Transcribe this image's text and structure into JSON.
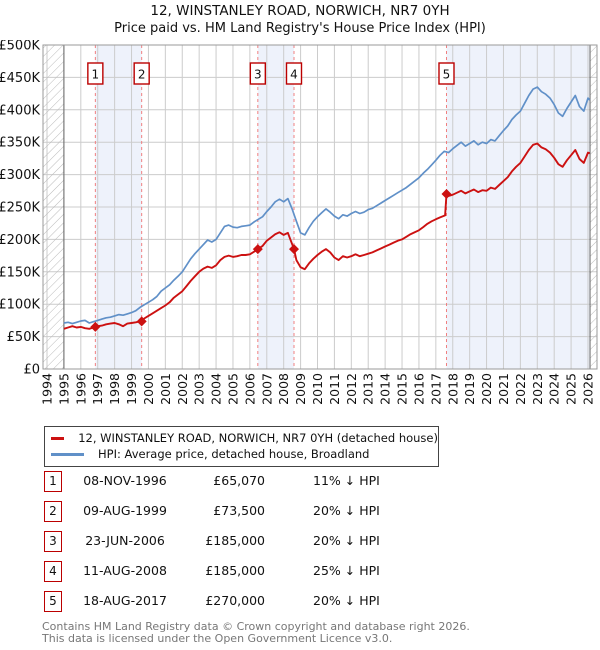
{
  "title": "12, WINSTANLEY ROAD, NORWICH, NR7 0YH",
  "subtitle": "Price paid vs. HM Land Registry's House Price Index (HPI)",
  "colors": {
    "price_line": "#cc1111",
    "hpi_line": "#6090c8",
    "band_fill": "#eef2fb",
    "grid": "#cccccc",
    "plot_border": "#999999",
    "hatch_line": "#bbbbbb",
    "hatch_edge": "#666666",
    "sale_dashed_line": "#f08080",
    "marker_box_border": "#bb0000",
    "axis_text": "#111111",
    "footer_text": "#777777"
  },
  "legend": {
    "entries": [
      {
        "label": "12, WINSTANLEY ROAD, NORWICH, NR7 0YH (detached house)",
        "color": "#cc1111"
      },
      {
        "label": "HPI: Average price, detached house, Broadland",
        "color": "#6090c8"
      }
    ]
  },
  "table": {
    "rows": [
      {
        "num": "1",
        "date": "08-NOV-1996",
        "price": "£65,070",
        "pct": "11% ↓ HPI"
      },
      {
        "num": "2",
        "date": "09-AUG-1999",
        "price": "£73,500",
        "pct": "20% ↓ HPI"
      },
      {
        "num": "3",
        "date": "23-JUN-2006",
        "price": "£185,000",
        "pct": "20% ↓ HPI"
      },
      {
        "num": "4",
        "date": "11-AUG-2008",
        "price": "£185,000",
        "pct": "25% ↓ HPI"
      },
      {
        "num": "5",
        "date": "18-AUG-2017",
        "price": "£270,000",
        "pct": "20% ↓ HPI"
      }
    ]
  },
  "footer": {
    "line1": "Contains HM Land Registry data © Crown copyright and database right 2026.",
    "line2": "This data is licensed under the Open Government Licence v3.0."
  },
  "chart_data": {
    "type": "line",
    "title": "12, WINSTANLEY ROAD, NORWICH, NR7 0YH",
    "subtitle": "Price paid vs. HM Land Registry's House Price Index (HPI)",
    "xlabel": "",
    "ylabel": "",
    "x_axis": {
      "min": 1993.76,
      "max": 2026.53,
      "ticks": [
        1994,
        1995,
        1996,
        1997,
        1998,
        1999,
        2000,
        2001,
        2002,
        2003,
        2004,
        2005,
        2006,
        2007,
        2008,
        2009,
        2010,
        2011,
        2012,
        2013,
        2014,
        2015,
        2016,
        2017,
        2018,
        2019,
        2020,
        2021,
        2022,
        2023,
        2024,
        2025,
        2026
      ]
    },
    "y_axis": {
      "min": 0,
      "max": 500,
      "unit": "GBP thousands",
      "tick_values": [
        0,
        50,
        100,
        150,
        200,
        250,
        300,
        350,
        400,
        450,
        500
      ],
      "tick_labels": [
        "£0",
        "£50K",
        "£100K",
        "£150K",
        "£200K",
        "£250K",
        "£300K",
        "£350K",
        "£400K",
        "£450K",
        "£500K"
      ]
    },
    "grid": true,
    "legend_position": "below",
    "no_data_hatch_ranges": [
      [
        1993.76,
        1995.0
      ],
      [
        2026.12,
        2026.53
      ]
    ],
    "ownership_bands": [
      [
        1996.86,
        1999.6
      ],
      [
        2006.47,
        2008.61
      ],
      [
        2017.63,
        2026.12
      ]
    ],
    "sales": [
      {
        "num": "1",
        "date": "08-NOV-1996",
        "year": 1996.86,
        "price_k": 65.07,
        "price_label": "£65,070",
        "vs_hpi": "11% ↓ HPI"
      },
      {
        "num": "2",
        "date": "09-AUG-1999",
        "year": 1999.6,
        "price_k": 73.5,
        "price_label": "£73,500",
        "vs_hpi": "20% ↓ HPI"
      },
      {
        "num": "3",
        "date": "23-JUN-2006",
        "year": 2006.47,
        "price_k": 185,
        "price_label": "£185,000",
        "vs_hpi": "20% ↓ HPI"
      },
      {
        "num": "4",
        "date": "11-AUG-2008",
        "year": 2008.61,
        "price_k": 185,
        "price_label": "£185,000",
        "vs_hpi": "25% ↓ HPI"
      },
      {
        "num": "5",
        "date": "18-AUG-2017",
        "year": 2017.63,
        "price_k": 270,
        "price_label": "£270,000",
        "vs_hpi": "20% ↓ HPI"
      }
    ],
    "series": [
      {
        "name": "12, WINSTANLEY ROAD, NORWICH, NR7 0YH (detached house)",
        "color": "#cc1111",
        "points": [
          [
            1995.0,
            62
          ],
          [
            1995.25,
            64
          ],
          [
            1995.5,
            66
          ],
          [
            1995.75,
            64
          ],
          [
            1996.0,
            65
          ],
          [
            1996.25,
            63
          ],
          [
            1996.5,
            62
          ],
          [
            1996.85,
            65
          ],
          [
            1997.0,
            66
          ],
          [
            1997.25,
            67
          ],
          [
            1997.5,
            69
          ],
          [
            1997.75,
            70
          ],
          [
            1998.0,
            71
          ],
          [
            1998.25,
            69
          ],
          [
            1998.5,
            66
          ],
          [
            1998.75,
            70
          ],
          [
            1999.0,
            71
          ],
          [
            1999.25,
            72
          ],
          [
            1999.6,
            74
          ],
          [
            1999.75,
            78
          ],
          [
            2000.0,
            82
          ],
          [
            2000.25,
            86
          ],
          [
            2000.5,
            90
          ],
          [
            2000.75,
            94
          ],
          [
            2001.0,
            98
          ],
          [
            2001.25,
            103
          ],
          [
            2001.5,
            110
          ],
          [
            2001.75,
            115
          ],
          [
            2002.0,
            120
          ],
          [
            2002.25,
            128
          ],
          [
            2002.5,
            136
          ],
          [
            2002.75,
            143
          ],
          [
            2003.0,
            150
          ],
          [
            2003.25,
            155
          ],
          [
            2003.5,
            158
          ],
          [
            2003.75,
            156
          ],
          [
            2004.0,
            160
          ],
          [
            2004.25,
            168
          ],
          [
            2004.5,
            173
          ],
          [
            2004.75,
            175
          ],
          [
            2005.0,
            173
          ],
          [
            2005.25,
            174
          ],
          [
            2005.5,
            176
          ],
          [
            2005.75,
            176
          ],
          [
            2006.0,
            177
          ],
          [
            2006.25,
            181
          ],
          [
            2006.47,
            185
          ],
          [
            2006.75,
            190
          ],
          [
            2007.0,
            198
          ],
          [
            2007.25,
            203
          ],
          [
            2007.5,
            208
          ],
          [
            2007.75,
            211
          ],
          [
            2008.0,
            207
          ],
          [
            2008.25,
            210
          ],
          [
            2008.61,
            185
          ],
          [
            2008.75,
            168
          ],
          [
            2009.0,
            157
          ],
          [
            2009.25,
            154
          ],
          [
            2009.5,
            163
          ],
          [
            2009.75,
            170
          ],
          [
            2010.0,
            176
          ],
          [
            2010.25,
            181
          ],
          [
            2010.5,
            185
          ],
          [
            2010.75,
            180
          ],
          [
            2011.0,
            172
          ],
          [
            2011.25,
            168
          ],
          [
            2011.5,
            174
          ],
          [
            2011.75,
            172
          ],
          [
            2012.0,
            174
          ],
          [
            2012.25,
            177
          ],
          [
            2012.5,
            174
          ],
          [
            2012.75,
            176
          ],
          [
            2013.0,
            178
          ],
          [
            2013.25,
            180
          ],
          [
            2013.5,
            183
          ],
          [
            2013.75,
            186
          ],
          [
            2014.0,
            189
          ],
          [
            2014.25,
            192
          ],
          [
            2014.5,
            195
          ],
          [
            2014.75,
            198
          ],
          [
            2015.0,
            200
          ],
          [
            2015.25,
            204
          ],
          [
            2015.5,
            208
          ],
          [
            2015.75,
            211
          ],
          [
            2016.0,
            214
          ],
          [
            2016.25,
            219
          ],
          [
            2016.5,
            224
          ],
          [
            2016.75,
            228
          ],
          [
            2017.0,
            231
          ],
          [
            2017.25,
            234
          ],
          [
            2017.55,
            237
          ],
          [
            2017.63,
            270
          ],
          [
            2017.75,
            267
          ],
          [
            2018.0,
            269
          ],
          [
            2018.25,
            272
          ],
          [
            2018.5,
            275
          ],
          [
            2018.75,
            271
          ],
          [
            2019.0,
            274
          ],
          [
            2019.25,
            277
          ],
          [
            2019.5,
            273
          ],
          [
            2019.75,
            276
          ],
          [
            2020.0,
            275
          ],
          [
            2020.25,
            280
          ],
          [
            2020.5,
            278
          ],
          [
            2020.75,
            284
          ],
          [
            2021.0,
            290
          ],
          [
            2021.25,
            296
          ],
          [
            2021.5,
            305
          ],
          [
            2021.75,
            312
          ],
          [
            2022.0,
            318
          ],
          [
            2022.25,
            328
          ],
          [
            2022.5,
            338
          ],
          [
            2022.75,
            346
          ],
          [
            2023.0,
            348
          ],
          [
            2023.25,
            342
          ],
          [
            2023.5,
            339
          ],
          [
            2023.75,
            334
          ],
          [
            2024.0,
            326
          ],
          [
            2024.25,
            316
          ],
          [
            2024.5,
            312
          ],
          [
            2024.75,
            322
          ],
          [
            2025.0,
            330
          ],
          [
            2025.25,
            338
          ],
          [
            2025.5,
            324
          ],
          [
            2025.75,
            318
          ],
          [
            2026.0,
            334
          ],
          [
            2026.1,
            333
          ]
        ]
      },
      {
        "name": "HPI: Average price, detached house, Broadland",
        "color": "#6090c8",
        "points": [
          [
            1995.0,
            71
          ],
          [
            1995.25,
            72
          ],
          [
            1995.5,
            70
          ],
          [
            1995.75,
            72
          ],
          [
            1996.0,
            74
          ],
          [
            1996.25,
            75
          ],
          [
            1996.5,
            71
          ],
          [
            1996.75,
            73
          ],
          [
            1997.0,
            75
          ],
          [
            1997.25,
            77
          ],
          [
            1997.5,
            79
          ],
          [
            1997.75,
            80
          ],
          [
            1998.0,
            82
          ],
          [
            1998.25,
            84
          ],
          [
            1998.5,
            83
          ],
          [
            1998.75,
            85
          ],
          [
            1999.0,
            87
          ],
          [
            1999.25,
            90
          ],
          [
            1999.5,
            95
          ],
          [
            1999.75,
            99
          ],
          [
            2000.0,
            103
          ],
          [
            2000.25,
            107
          ],
          [
            2000.5,
            112
          ],
          [
            2000.75,
            120
          ],
          [
            2001.0,
            125
          ],
          [
            2001.25,
            130
          ],
          [
            2001.5,
            137
          ],
          [
            2001.75,
            143
          ],
          [
            2002.0,
            150
          ],
          [
            2002.25,
            160
          ],
          [
            2002.5,
            170
          ],
          [
            2002.75,
            178
          ],
          [
            2003.0,
            185
          ],
          [
            2003.25,
            192
          ],
          [
            2003.5,
            199
          ],
          [
            2003.75,
            196
          ],
          [
            2004.0,
            200
          ],
          [
            2004.25,
            210
          ],
          [
            2004.5,
            220
          ],
          [
            2004.75,
            222
          ],
          [
            2005.0,
            219
          ],
          [
            2005.25,
            218
          ],
          [
            2005.5,
            220
          ],
          [
            2005.75,
            221
          ],
          [
            2006.0,
            222
          ],
          [
            2006.25,
            227
          ],
          [
            2006.5,
            231
          ],
          [
            2006.75,
            235
          ],
          [
            2007.0,
            243
          ],
          [
            2007.25,
            250
          ],
          [
            2007.5,
            258
          ],
          [
            2007.75,
            262
          ],
          [
            2008.0,
            258
          ],
          [
            2008.25,
            263
          ],
          [
            2008.5,
            247
          ],
          [
            2008.75,
            228
          ],
          [
            2009.0,
            210
          ],
          [
            2009.25,
            207
          ],
          [
            2009.5,
            218
          ],
          [
            2009.75,
            228
          ],
          [
            2010.0,
            235
          ],
          [
            2010.25,
            241
          ],
          [
            2010.5,
            247
          ],
          [
            2010.75,
            242
          ],
          [
            2011.0,
            236
          ],
          [
            2011.25,
            232
          ],
          [
            2011.5,
            238
          ],
          [
            2011.75,
            236
          ],
          [
            2012.0,
            240
          ],
          [
            2012.25,
            243
          ],
          [
            2012.5,
            240
          ],
          [
            2012.75,
            242
          ],
          [
            2013.0,
            246
          ],
          [
            2013.25,
            248
          ],
          [
            2013.5,
            252
          ],
          [
            2013.75,
            256
          ],
          [
            2014.0,
            260
          ],
          [
            2014.25,
            264
          ],
          [
            2014.5,
            268
          ],
          [
            2014.75,
            272
          ],
          [
            2015.0,
            276
          ],
          [
            2015.25,
            280
          ],
          [
            2015.5,
            285
          ],
          [
            2015.75,
            290
          ],
          [
            2016.0,
            295
          ],
          [
            2016.25,
            302
          ],
          [
            2016.5,
            308
          ],
          [
            2016.75,
            315
          ],
          [
            2017.0,
            322
          ],
          [
            2017.25,
            330
          ],
          [
            2017.5,
            336
          ],
          [
            2017.75,
            334
          ],
          [
            2018.0,
            340
          ],
          [
            2018.25,
            345
          ],
          [
            2018.5,
            350
          ],
          [
            2018.75,
            344
          ],
          [
            2019.0,
            348
          ],
          [
            2019.25,
            352
          ],
          [
            2019.5,
            346
          ],
          [
            2019.75,
            350
          ],
          [
            2020.0,
            348
          ],
          [
            2020.25,
            354
          ],
          [
            2020.5,
            352
          ],
          [
            2020.75,
            360
          ],
          [
            2021.0,
            368
          ],
          [
            2021.25,
            375
          ],
          [
            2021.5,
            385
          ],
          [
            2021.75,
            392
          ],
          [
            2022.0,
            398
          ],
          [
            2022.25,
            410
          ],
          [
            2022.5,
            422
          ],
          [
            2022.75,
            432
          ],
          [
            2023.0,
            435
          ],
          [
            2023.25,
            428
          ],
          [
            2023.5,
            424
          ],
          [
            2023.75,
            418
          ],
          [
            2024.0,
            408
          ],
          [
            2024.25,
            395
          ],
          [
            2024.5,
            390
          ],
          [
            2024.75,
            402
          ],
          [
            2025.0,
            412
          ],
          [
            2025.25,
            422
          ],
          [
            2025.5,
            405
          ],
          [
            2025.75,
            398
          ],
          [
            2026.0,
            418
          ],
          [
            2026.1,
            415
          ]
        ]
      }
    ]
  }
}
